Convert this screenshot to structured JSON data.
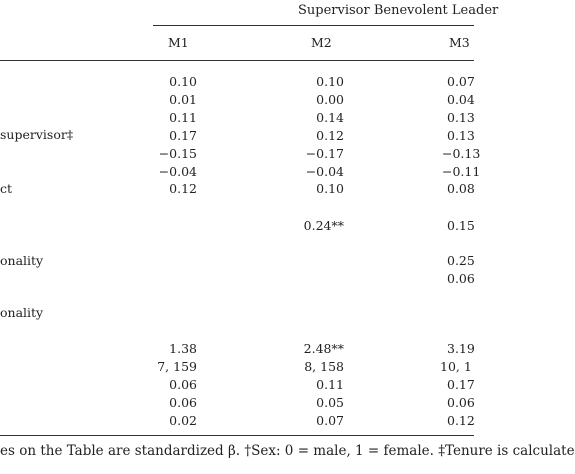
{
  "header": {
    "group_title": "Supervisor Benevolent Leader",
    "models": [
      "M1",
      "M2",
      "M3"
    ]
  },
  "row_labels": {
    "supervisor": "supervisor‡",
    "contact": "ct",
    "personality_a": "onality",
    "personality_b": "onality"
  },
  "rows": [
    {
      "m1": "0.10",
      "m2": "0.10",
      "m3": "0.07"
    },
    {
      "m1": "0.01",
      "m2": "0.00",
      "m3": "0.04"
    },
    {
      "m1": "0.11",
      "m2": "0.14",
      "m3": "0.13"
    },
    {
      "m1": "0.17",
      "m2": "0.12",
      "m3": "0.13"
    },
    {
      "m1": "−0.15",
      "m2": "−0.17",
      "m3": "−0.13"
    },
    {
      "m1": "−0.04",
      "m2": "−0.04",
      "m3": "−0.11"
    },
    {
      "m1": "0.12",
      "m2": "0.10",
      "m3": "0.08"
    },
    {
      "m1": "",
      "m2": "0.24**",
      "m3": "0.15"
    },
    {
      "m1": "",
      "m2": "",
      "m3": "0.25"
    },
    {
      "m1": "",
      "m2": "",
      "m3": "0.06"
    },
    {
      "m1": "1.38",
      "m2": "2.48**",
      "m3": "3.19"
    },
    {
      "m1": "7, 159",
      "m2": "8, 158",
      "m3": "10, 1"
    },
    {
      "m1": "0.06",
      "m2": "0.11",
      "m3": "0.17"
    },
    {
      "m1": "0.06",
      "m2": "0.05",
      "m3": "0.06"
    },
    {
      "m1": "0.02",
      "m2": "0.07",
      "m3": "0.12"
    }
  ],
  "footnote": "es on the Table are standardized β. †Sex: 0 = male, 1 = female. ‡Tenure is calculate"
}
